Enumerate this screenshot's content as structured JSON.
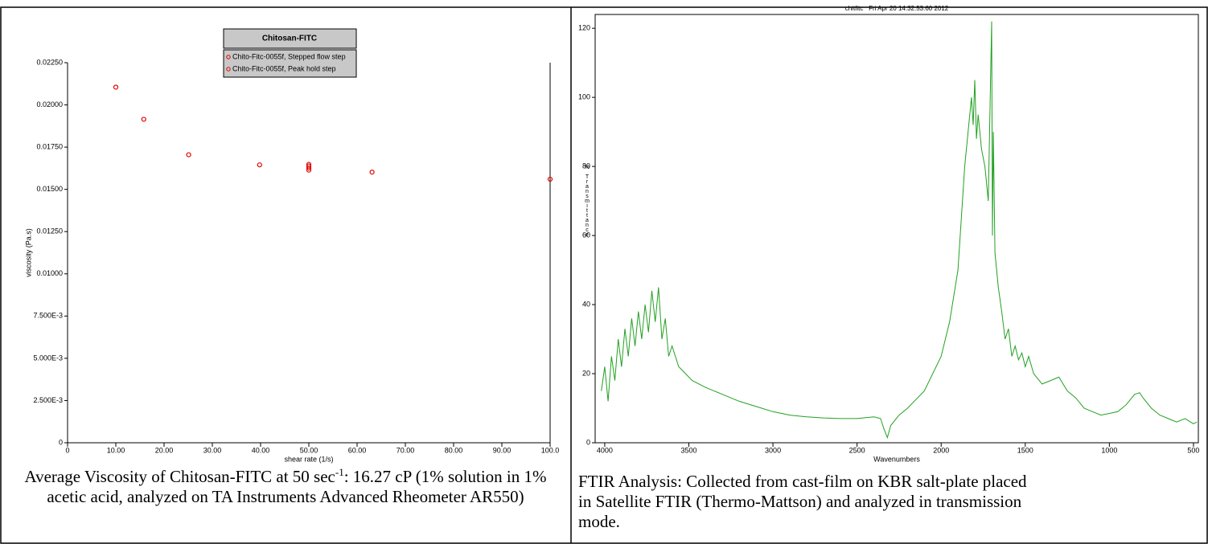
{
  "chart_data": [
    {
      "type": "scatter",
      "title": "Chitosan-FITC",
      "x_label": "shear rate (1/s)",
      "y_label": "viscosity (Pa.s)",
      "series": [
        {
          "name": "Chito-Fitc-0055f, Stepped flow step",
          "color": "#e00000",
          "x": [
            10,
            15.8,
            25.1,
            39.8,
            50,
            63.1,
            100
          ],
          "values": [
            0.02105,
            0.01915,
            0.01705,
            0.01645,
            0.01648,
            0.01602,
            0.0156
          ]
        },
        {
          "name": "Chito-Fitc-0055f, Peak hold step",
          "color": "#e00000",
          "x": [
            50,
            50,
            50
          ],
          "values": [
            0.01638,
            0.01626,
            0.01614
          ]
        }
      ],
      "xlim": [
        0,
        100
      ],
      "xticks": [
        0,
        {
          "value": 10,
          "label": "10.00"
        },
        {
          "value": 20,
          "label": "20.00"
        },
        {
          "value": 30,
          "label": "30.00"
        },
        {
          "value": 40,
          "label": "40.00"
        },
        {
          "value": 50,
          "label": "50.00"
        },
        {
          "value": 60,
          "label": "60.00"
        },
        {
          "value": 70,
          "label": "70.00"
        },
        {
          "value": 80,
          "label": "80.00"
        },
        {
          "value": 90,
          "label": "90.00"
        },
        {
          "value": 100,
          "label": "100.0"
        }
      ],
      "ylim": [
        0,
        0.0225
      ],
      "yticks": [
        0,
        {
          "value": 0.0025,
          "label": "2.500E-3"
        },
        {
          "value": 0.005,
          "label": "5.000E-3"
        },
        {
          "value": 0.0075,
          "label": "7.500E-3"
        },
        {
          "value": 0.01,
          "label": "0.01000"
        },
        {
          "value": 0.0125,
          "label": "0.01250"
        },
        {
          "value": 0.015,
          "label": "0.01500"
        },
        {
          "value": 0.0175,
          "label": "0.01750"
        },
        {
          "value": 0.02,
          "label": "0.02000"
        },
        {
          "value": 0.0225,
          "label": "0.02250"
        }
      ],
      "caption": [
        "Average Viscosity of Chitosan-FITC at 50 sec",
        "-1",
        ": 16.27 cP (1% solution in 1% acetic acid, analyzed on TA Instruments Advanced Rheometer AR550)"
      ]
    },
    {
      "type": "line",
      "title": "chitfitc   Fri Apr 20 14:32:53:60 2012",
      "x_label": "Wavenumbers",
      "y_label": "% Transmittance",
      "series": [
        {
          "name": "chitfitc",
          "color": "#22a022",
          "x": [
            4020,
            4000,
            3980,
            3960,
            3940,
            3920,
            3900,
            3880,
            3860,
            3840,
            3820,
            3800,
            3780,
            3760,
            3740,
            3720,
            3700,
            3680,
            3660,
            3640,
            3620,
            3600,
            3560,
            3520,
            3480,
            3400,
            3300,
            3200,
            3100,
            3000,
            2900,
            2800,
            2700,
            2600,
            2500,
            2400,
            2360,
            2340,
            2320,
            2300,
            2250,
            2200,
            2100,
            2000,
            1950,
            1900,
            1880,
            1860,
            1840,
            1820,
            1810,
            1800,
            1790,
            1780,
            1760,
            1740,
            1720,
            1700,
            1695,
            1690,
            1680,
            1660,
            1640,
            1620,
            1600,
            1580,
            1560,
            1540,
            1520,
            1500,
            1480,
            1450,
            1400,
            1350,
            1300,
            1250,
            1200,
            1150,
            1100,
            1050,
            1000,
            950,
            900,
            850,
            820,
            800,
            750,
            700,
            650,
            600,
            550,
            500,
            480
          ],
          "values": [
            15,
            22,
            12,
            25,
            18,
            30,
            22,
            33,
            25,
            36,
            28,
            38,
            30,
            40,
            32,
            44,
            35,
            45,
            30,
            36,
            25,
            28,
            22,
            20,
            18,
            16,
            14,
            12,
            10.5,
            9,
            8,
            7.5,
            7.2,
            7,
            7,
            7.5,
            7,
            4,
            1.5,
            5,
            8,
            10,
            15,
            25,
            35,
            50,
            65,
            80,
            90,
            100,
            92,
            105,
            88,
            95,
            85,
            80,
            70,
            122,
            60,
            90,
            55,
            45,
            38,
            30,
            33,
            25,
            28,
            24,
            26,
            22,
            25,
            20,
            17,
            18,
            19,
            15,
            13,
            10,
            9,
            8,
            8.5,
            9,
            11,
            14,
            14.5,
            13,
            10,
            8,
            7,
            6,
            7,
            5.5,
            6
          ]
        }
      ],
      "xlim": [
        4057,
        471
      ],
      "xticks": [
        4000,
        3500,
        3000,
        2500,
        2000,
        1500,
        1000,
        500
      ],
      "ylim": [
        0,
        124
      ],
      "yticks": [
        0,
        20,
        40,
        60,
        80,
        100,
        120
      ],
      "caption": [
        "FTIR Analysis: Collected from cast-film on KBR salt-plate placed in Satellite FTIR (Thermo-Mattson) and analyzed in transmission mode."
      ]
    }
  ]
}
